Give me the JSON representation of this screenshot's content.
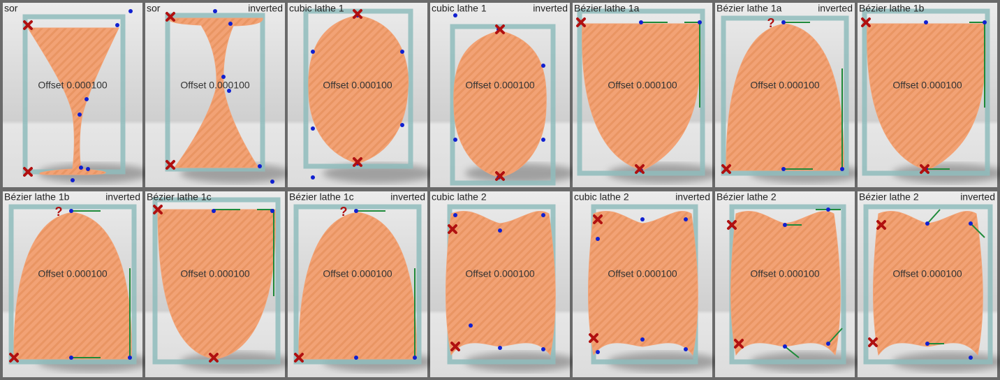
{
  "panels": [
    {
      "title": "sor",
      "offset": "Offset 0.000100"
    },
    {
      "title": "sor",
      "mode": "inverted",
      "offset": "Offset 0.000100"
    },
    {
      "title": "cubic lathe 1",
      "offset": "Offset 0.000100"
    },
    {
      "title": "cubic lathe 1",
      "mode": "inverted",
      "offset": "Offset 0.000100"
    },
    {
      "title": "Bézier lathe 1a",
      "offset": "Offset 0.000100"
    },
    {
      "title": "Bézier lathe 1a",
      "mode": "inverted",
      "marker": "?",
      "offset": "Offset 0.000100"
    },
    {
      "title": "Bézier lathe 1b",
      "offset": "Offset 0.000100"
    },
    {
      "title": "Bézier lathe 1b",
      "mode": "inverted",
      "marker": "?",
      "offset": "Offset 0.000100"
    },
    {
      "title": "Bézier lathe 1c",
      "offset": "Offset 0.000100"
    },
    {
      "title": "Bézier lathe 1c",
      "mode": "inverted",
      "marker": "?",
      "offset": "Offset 0.000100"
    },
    {
      "title": "cubic lathe 2",
      "offset": "Offset 0.000100"
    },
    {
      "title": "cubic lathe 2",
      "mode": "inverted",
      "offset": "Offset 0.000100"
    },
    {
      "title": "Bézier lathe 2",
      "offset": "Offset 0.000100"
    },
    {
      "title": "Bézier lathe 2",
      "mode": "inverted",
      "offset": "Offset 0.000100"
    }
  ]
}
